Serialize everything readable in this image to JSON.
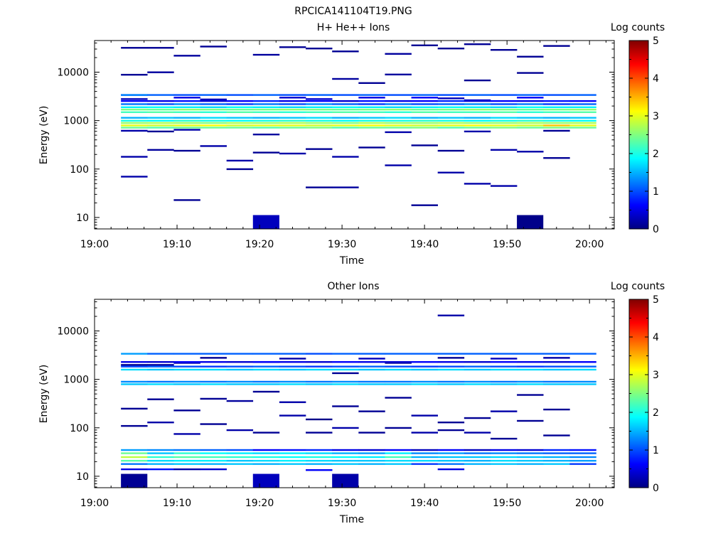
{
  "figure_title": "RPCICA141104T19.PNG",
  "colors": {
    "colormap": [
      "#000080",
      "#0000ff",
      "#0080ff",
      "#00ffff",
      "#80ff80",
      "#ffff00",
      "#ff8000",
      "#ff0000",
      "#800000"
    ],
    "axis": "#000000",
    "background": "#ffffff"
  },
  "chart_data": [
    {
      "type": "heatmap",
      "title": "H+ He++ Ions",
      "xlabel": "Time",
      "ylabel": "Energy (eV)",
      "x_tick_labels": [
        "19:00",
        "19:10",
        "19:20",
        "19:30",
        "19:40",
        "19:50",
        "20:00"
      ],
      "x_range_minutes": [
        0,
        63
      ],
      "y_scale": "log",
      "y_range": [
        5.8,
        45000
      ],
      "y_tick_labels": [
        "10",
        "100",
        "1000",
        "10000"
      ],
      "colorbar": {
        "label": "Log counts",
        "range": [
          0,
          5
        ],
        "tick_labels": [
          "0",
          "1",
          "2",
          "3",
          "4",
          "5"
        ]
      },
      "time_bins_minutes": [
        3.2,
        6.4,
        9.6,
        12.8,
        16.0,
        19.2,
        22.4,
        25.6,
        28.8,
        32.0,
        35.2,
        38.4,
        41.6,
        44.8,
        48.0,
        51.2,
        54.4,
        57.6
      ],
      "bands": [
        {
          "energy": 720,
          "values": [
            2.4,
            2.3,
            2.4,
            2.4,
            2.4,
            2.3,
            2.4,
            2.5,
            2.3,
            2.4,
            2.4,
            2.5,
            2.3,
            2.4,
            2.5,
            2.4,
            2.5,
            2.4
          ]
        },
        {
          "energy": 800,
          "values": [
            3.0,
            2.9,
            3.0,
            3.1,
            2.9,
            3.0,
            3.0,
            2.9,
            3.0,
            3.1,
            3.0,
            2.9,
            3.0,
            3.1,
            3.0,
            2.9,
            3.4,
            3.0
          ]
        },
        {
          "energy": 900,
          "values": [
            2.6,
            2.7,
            2.6,
            2.5,
            2.7,
            2.6,
            2.7,
            2.6,
            2.5,
            2.7,
            2.6,
            2.6,
            2.7,
            2.6,
            2.6,
            2.7,
            2.6,
            2.7
          ]
        },
        {
          "energy": 1000,
          "values": [
            2.0,
            1.9,
            2.1,
            2.0,
            1.9,
            2.0,
            2.1,
            2.0,
            1.9,
            2.0,
            2.0,
            2.1,
            2.0,
            1.9,
            2.0,
            2.1,
            2.0,
            1.9
          ]
        },
        {
          "energy": 1150,
          "values": [
            1.5,
            1.6,
            1.5,
            1.7,
            1.6,
            1.5,
            1.6,
            1.7,
            1.5,
            1.6,
            1.7,
            1.5,
            1.6,
            1.5,
            1.7,
            1.6,
            1.5,
            1.6
          ]
        },
        {
          "energy": 1500,
          "values": [
            2.2,
            2.3,
            2.2,
            2.1,
            2.3,
            2.2,
            2.1,
            2.2,
            2.3,
            2.2,
            2.1,
            2.3,
            2.2,
            2.2,
            2.3,
            2.1,
            2.2,
            2.3
          ]
        },
        {
          "energy": 1700,
          "values": [
            2.5,
            2.4,
            2.6,
            2.5,
            2.4,
            2.5,
            2.6,
            2.5,
            2.4,
            2.5,
            2.6,
            2.4,
            2.5,
            2.6,
            2.5,
            2.4,
            2.5,
            2.6
          ]
        },
        {
          "energy": 1900,
          "values": [
            1.8,
            1.9,
            1.8,
            1.7,
            1.9,
            1.8,
            1.7,
            1.8,
            1.9,
            1.8,
            1.7,
            1.8,
            1.9,
            1.8,
            1.7,
            1.9,
            1.8,
            1.8
          ]
        },
        {
          "energy": 2200,
          "values": [
            1.2,
            1.0,
            1.3,
            1.1,
            0.9,
            1.2,
            1.0,
            1.3,
            1.1,
            0.9,
            1.2,
            1.0,
            1.1,
            1.3,
            1.0,
            1.2,
            0.9,
            1.1
          ]
        },
        {
          "energy": 2550,
          "values": [
            0.6,
            0.5,
            0.7,
            0.4,
            0.6,
            0.8,
            0.5,
            0.6,
            0.4,
            0.7,
            0.5,
            0.6,
            0.8,
            0.4,
            0.6,
            0.5,
            0.7,
            0.6
          ]
        },
        {
          "energy": 3400,
          "values": [
            1.3,
            1.1,
            1.0,
            1.1,
            1.0,
            1.1,
            1.0,
            1.1,
            1.0,
            1.1,
            1.0,
            1.1,
            1.0,
            1.1,
            1.0,
            1.1,
            1.0,
            1.1
          ]
        }
      ],
      "patches": [
        [
          3.2,
          3400,
          0.6
        ],
        [
          9.6,
          3000,
          0.5
        ],
        [
          22.4,
          3000,
          0.4
        ],
        [
          32.0,
          3000,
          0.5
        ],
        [
          38.4,
          3000,
          0.6
        ],
        [
          51.2,
          3000,
          0.6
        ],
        [
          3.2,
          2800,
          0.3
        ],
        [
          12.8,
          2750,
          0.3
        ],
        [
          25.6,
          2800,
          0.4
        ],
        [
          41.6,
          2900,
          0.3
        ],
        [
          44.8,
          2650,
          0.4
        ],
        [
          3.2,
          620,
          0.2
        ],
        [
          6.4,
          600,
          0.1
        ],
        [
          9.6,
          650,
          0.2
        ],
        [
          19.2,
          520,
          0.15
        ],
        [
          35.2,
          580,
          0.2
        ],
        [
          44.8,
          600,
          0.2
        ],
        [
          54.4,
          620,
          0.1
        ],
        [
          3.2,
          8900,
          0.1
        ],
        [
          6.4,
          10000,
          0.15
        ],
        [
          28.8,
          7300,
          0.15
        ],
        [
          32.0,
          6000,
          0.1
        ],
        [
          35.2,
          9000,
          0.15
        ],
        [
          44.8,
          6800,
          0.1
        ],
        [
          51.2,
          9700,
          0.1
        ],
        [
          3.2,
          32000,
          0.1
        ],
        [
          6.4,
          32000,
          0.1
        ],
        [
          9.6,
          22000,
          0.15
        ],
        [
          12.8,
          34000,
          0.1
        ],
        [
          19.2,
          23000,
          0.15
        ],
        [
          22.4,
          33000,
          0.1
        ],
        [
          25.6,
          31000,
          0.1
        ],
        [
          28.8,
          27000,
          0.1
        ],
        [
          35.2,
          24000,
          0.15
        ],
        [
          38.4,
          36000,
          0.1
        ],
        [
          41.6,
          31000,
          0.1
        ],
        [
          44.8,
          38000,
          0.1
        ],
        [
          48.0,
          29000,
          0.1
        ],
        [
          51.2,
          21000,
          0.1
        ],
        [
          54.4,
          35000,
          0.1
        ],
        [
          3.2,
          180,
          0.2
        ],
        [
          6.4,
          250,
          0.15
        ],
        [
          9.6,
          240,
          0.1
        ],
        [
          12.8,
          300,
          0.2
        ],
        [
          16.0,
          150,
          0.2
        ],
        [
          19.2,
          220,
          0.1
        ],
        [
          22.4,
          210,
          0.2
        ],
        [
          25.6,
          260,
          0.1
        ],
        [
          28.8,
          180,
          0.2
        ],
        [
          32.0,
          280,
          0.1
        ],
        [
          35.2,
          120,
          0.2
        ],
        [
          38.4,
          310,
          0.1
        ],
        [
          41.6,
          240,
          0.1
        ],
        [
          48.0,
          250,
          0.2
        ],
        [
          51.2,
          230,
          0.2
        ],
        [
          54.4,
          170,
          0.1
        ],
        [
          3.2,
          70,
          0.2
        ],
        [
          9.6,
          23,
          0.1
        ],
        [
          16.0,
          100,
          0.1
        ],
        [
          25.6,
          42,
          0.1
        ],
        [
          28.8,
          42,
          0.15
        ],
        [
          38.4,
          18,
          0.1
        ],
        [
          41.6,
          85,
          0.2
        ],
        [
          44.8,
          50,
          0.2
        ],
        [
          48.0,
          45,
          0.2
        ],
        [
          19.2,
          9,
          0.3
        ],
        [
          51.2,
          9,
          0.05
        ]
      ]
    },
    {
      "type": "heatmap",
      "title": "Other Ions",
      "xlabel": "Time",
      "ylabel": "Energy (eV)",
      "x_tick_labels": [
        "19:00",
        "19:10",
        "19:20",
        "19:30",
        "19:40",
        "19:50",
        "20:00"
      ],
      "x_range_minutes": [
        0,
        63
      ],
      "y_scale": "log",
      "y_range": [
        5.8,
        45000
      ],
      "y_tick_labels": [
        "10",
        "100",
        "1000",
        "10000"
      ],
      "colorbar": {
        "label": "Log counts",
        "range": [
          0,
          5
        ],
        "tick_labels": [
          "0",
          "1",
          "2",
          "3",
          "4",
          "5"
        ]
      },
      "time_bins_minutes": [
        3.2,
        6.4,
        9.6,
        12.8,
        16.0,
        19.2,
        22.4,
        25.6,
        28.8,
        32.0,
        35.2,
        38.4,
        41.6,
        44.8,
        48.0,
        51.2,
        54.4,
        57.6
      ],
      "bands": [
        {
          "energy": 800,
          "values": [
            1.6,
            1.7,
            1.6,
            1.7,
            1.6,
            1.6,
            1.7,
            1.6,
            1.7,
            1.6,
            1.6,
            1.7,
            1.6,
            1.7,
            1.6,
            1.7,
            1.6,
            1.6
          ]
        },
        {
          "energy": 900,
          "values": [
            1.3,
            1.2,
            1.3,
            1.2,
            1.3,
            1.2,
            1.3,
            1.2,
            1.3,
            1.2,
            1.2,
            1.3,
            1.2,
            1.3,
            1.2,
            1.3,
            1.2,
            1.3
          ]
        },
        {
          "energy": 1600,
          "values": [
            1.7,
            1.6,
            1.7,
            1.7,
            1.6,
            1.7,
            1.6,
            1.7,
            1.7,
            1.6,
            1.7,
            1.6,
            1.7,
            1.6,
            1.7,
            1.7,
            1.6,
            1.7
          ]
        },
        {
          "energy": 1850,
          "values": [
            1.0,
            1.1,
            1.0,
            0.9,
            1.0,
            1.1,
            1.0,
            0.9,
            1.0,
            1.1,
            1.0,
            0.9,
            1.0,
            1.1,
            1.0,
            0.9,
            1.0,
            1.1
          ]
        },
        {
          "energy": 2300,
          "values": [
            0.5,
            0.4,
            0.6,
            0.5,
            0.4,
            0.6,
            0.5,
            0.4,
            0.6,
            0.5,
            0.4,
            0.6,
            0.5,
            0.4,
            0.6,
            0.5,
            0.4,
            0.6
          ]
        },
        {
          "energy": 3400,
          "values": [
            1.4,
            1.1,
            1.1,
            1.1,
            1.1,
            1.1,
            1.1,
            1.0,
            1.1,
            1.1,
            1.1,
            1.1,
            1.1,
            1.1,
            1.1,
            1.1,
            1.1,
            1.1
          ]
        },
        {
          "energy": 18,
          "values": [
            1.2,
            1.5,
            1.6,
            1.5,
            1.6,
            1.5,
            1.6,
            1.5,
            1.6,
            1.5,
            1.6,
            0.9,
            1.2,
            1.5,
            1.6,
            1.5,
            1.6,
            0.9
          ]
        },
        {
          "energy": 21,
          "values": [
            2.3,
            1.7,
            1.8,
            1.8,
            1.6,
            1.7,
            1.8,
            1.7,
            1.6,
            1.6,
            1.7,
            1.7,
            1.6,
            1.5,
            1.7,
            1.6,
            1.5,
            1.4
          ]
        },
        {
          "energy": 25,
          "values": [
            2.8,
            2.1,
            2.3,
            2.2,
            2.1,
            2.0,
            1.9,
            2.0,
            1.9,
            1.8,
            2.2,
            1.5,
            1.6,
            1.6,
            1.7,
            1.6,
            1.5,
            1.3
          ]
        },
        {
          "energy": 30,
          "values": [
            2.4,
            1.6,
            2.1,
            1.9,
            1.8,
            1.7,
            1.8,
            1.7,
            1.5,
            1.4,
            1.8,
            1.3,
            1.4,
            1.2,
            1.3,
            1.2,
            1.1,
            1.1
          ]
        },
        {
          "energy": 35,
          "values": [
            1.4,
            1.3,
            1.2,
            1.1,
            1.0,
            0.6,
            0.7,
            0.8,
            0.5,
            0.4,
            0.6,
            0.3,
            0.6,
            0.3,
            0.5,
            0.4,
            0.8,
            0.7
          ]
        },
        {
          "energy": 14,
          "values": [
            0.5,
            0.7,
            0.2,
            0.4,
            0.0,
            0.0,
            0.0,
            0.0,
            0.0,
            0.0,
            0.0,
            0.0,
            0.5,
            0.0,
            0.0,
            0.0,
            0.0,
            0.0
          ]
        }
      ],
      "patches": [
        [
          3.2,
          9,
          0.1
        ],
        [
          19.2,
          9,
          0.3
        ],
        [
          28.8,
          9,
          0.2
        ],
        [
          25.6,
          13.5,
          0.6
        ],
        [
          3.2,
          2000,
          0.1
        ],
        [
          6.4,
          2000,
          0.15
        ],
        [
          12.8,
          2800,
          0.1
        ],
        [
          22.4,
          2700,
          0.2
        ],
        [
          32.0,
          2700,
          0.3
        ],
        [
          41.6,
          2800,
          0.1
        ],
        [
          48.0,
          2700,
          0.3
        ],
        [
          54.4,
          2800,
          0.2
        ],
        [
          9.6,
          2200,
          0.2
        ],
        [
          19.2,
          2300,
          0.1
        ],
        [
          28.8,
          1350,
          0.1
        ],
        [
          35.2,
          2200,
          0.1
        ],
        [
          41.6,
          21000,
          0.2
        ],
        [
          3.2,
          250,
          0.1
        ],
        [
          6.4,
          390,
          0.1
        ],
        [
          9.6,
          230,
          0.1
        ],
        [
          12.8,
          400,
          0.1
        ],
        [
          16.0,
          360,
          0.15
        ],
        [
          19.2,
          560,
          0.1
        ],
        [
          22.4,
          340,
          0.2
        ],
        [
          25.6,
          150,
          0.05
        ],
        [
          28.8,
          280,
          0.1
        ],
        [
          32.0,
          220,
          0.1
        ],
        [
          35.2,
          420,
          0.1
        ],
        [
          38.4,
          180,
          0.2
        ],
        [
          41.6,
          130,
          0.1
        ],
        [
          44.8,
          160,
          0.1
        ],
        [
          48.0,
          220,
          0.2
        ],
        [
          51.2,
          480,
          0.1
        ],
        [
          54.4,
          240,
          0.1
        ],
        [
          3.2,
          110,
          0.1
        ],
        [
          6.4,
          130,
          0.2
        ],
        [
          9.6,
          75,
          0.2
        ],
        [
          12.8,
          120,
          0.1
        ],
        [
          16.0,
          90,
          0.2
        ],
        [
          19.2,
          80,
          0.1
        ],
        [
          22.4,
          180,
          0.2
        ],
        [
          25.6,
          80,
          0.1
        ],
        [
          28.8,
          100,
          0.2
        ],
        [
          32.0,
          80,
          0.1
        ],
        [
          35.2,
          100,
          0.1
        ],
        [
          38.4,
          80,
          0.2
        ],
        [
          41.6,
          90,
          0.1
        ],
        [
          44.8,
          80,
          0.2
        ],
        [
          48.0,
          60,
          0.1
        ],
        [
          51.2,
          140,
          0.1
        ],
        [
          54.4,
          70,
          0.1
        ]
      ]
    }
  ]
}
